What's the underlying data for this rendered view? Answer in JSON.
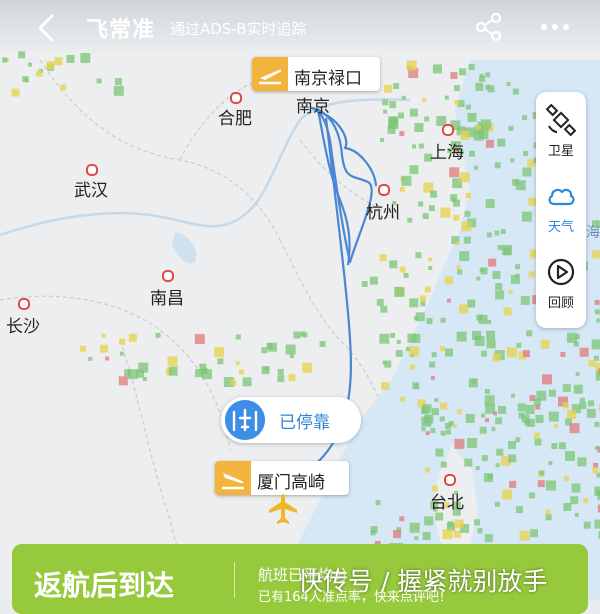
{
  "header": {
    "brand": "飞常准",
    "subtitle": "通过ADS-B实时追踪"
  },
  "tools": [
    {
      "label": "卫星",
      "icon": "satellite-icon",
      "active": false
    },
    {
      "label": "天气",
      "icon": "weather-cloud-icon",
      "active": true
    },
    {
      "label": "回顾",
      "icon": "replay-icon",
      "active": false
    }
  ],
  "map": {
    "cities": [
      {
        "name": "合肥"
      },
      {
        "name": "南京"
      },
      {
        "name": "上海"
      },
      {
        "name": "武汉"
      },
      {
        "name": "杭州"
      },
      {
        "name": "南昌"
      },
      {
        "name": "长沙"
      },
      {
        "name": "台北"
      }
    ],
    "sea_label": "海",
    "origin_airport": "南京禄口",
    "destination_airport": "厦门高崎",
    "status": "已停靠",
    "route_color": "#4a86d4",
    "radar_colors": [
      "#7cc576",
      "#e8d24a",
      "#e07a7a"
    ]
  },
  "bottom_card": {
    "title": "返航后到达",
    "info_line1": "航班已平均分",
    "info_line2": "已有164人准点率，快来点评吧！"
  },
  "watermark": "快传号 / 握紧就别放手"
}
